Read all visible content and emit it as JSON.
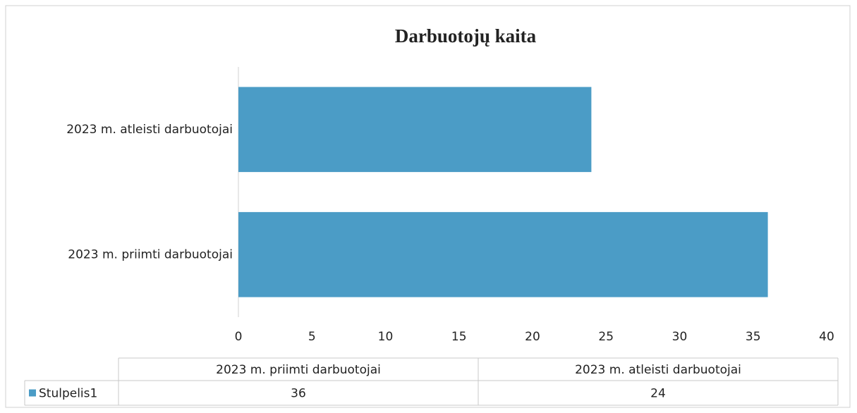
{
  "chart_data": {
    "type": "bar",
    "orientation": "horizontal",
    "title": "Darbuotojų kaita",
    "categories": [
      "2023 m. priimti darbuotojai",
      "2023 m. atleisti darbuotojai"
    ],
    "series": [
      {
        "name": "Stulpelis1",
        "color": "#4b9cc6",
        "values": [
          36,
          24
        ]
      }
    ],
    "xlim": [
      0,
      40
    ],
    "xticks": [
      0,
      5,
      10,
      15,
      20,
      25,
      30,
      35,
      40
    ],
    "grid": false,
    "data_table": true
  }
}
